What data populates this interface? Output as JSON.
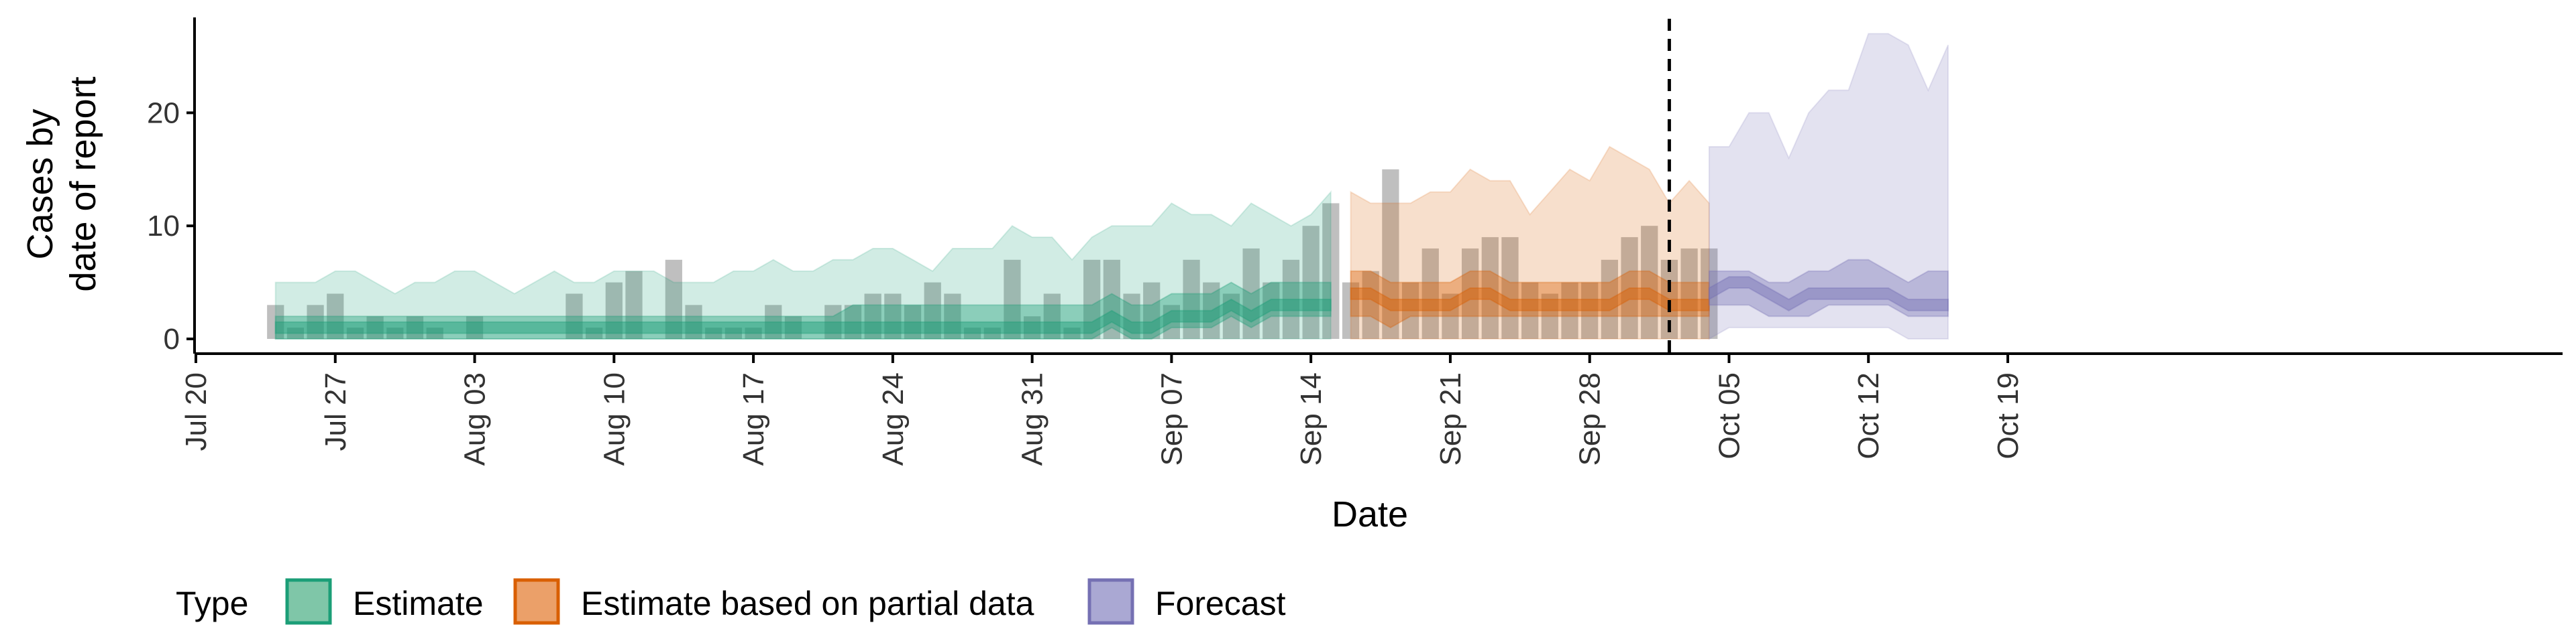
{
  "chart_data": {
    "type": "area",
    "xlabel": "Date",
    "ylabel": [
      "Cases by",
      "date of report"
    ],
    "ylim": [
      0,
      29
    ],
    "xlim": [
      "2020-07-20",
      "2020-10-19"
    ],
    "y_ticks": [
      0,
      10,
      20
    ],
    "x_ticks": [
      {
        "date": "2020-07-20",
        "label": "Jul 20"
      },
      {
        "date": "2020-07-27",
        "label": "Jul 27"
      },
      {
        "date": "2020-08-03",
        "label": "Aug 03"
      },
      {
        "date": "2020-08-10",
        "label": "Aug 10"
      },
      {
        "date": "2020-08-17",
        "label": "Aug 17"
      },
      {
        "date": "2020-08-24",
        "label": "Aug 24"
      },
      {
        "date": "2020-08-31",
        "label": "Aug 31"
      },
      {
        "date": "2020-09-07",
        "label": "Sep 07"
      },
      {
        "date": "2020-09-14",
        "label": "Sep 14"
      },
      {
        "date": "2020-09-21",
        "label": "Sep 21"
      },
      {
        "date": "2020-09-28",
        "label": "Sep 28"
      },
      {
        "date": "2020-10-05",
        "label": "Oct 05"
      },
      {
        "date": "2020-10-12",
        "label": "Oct 12"
      },
      {
        "date": "2020-10-19",
        "label": "Oct 19"
      }
    ],
    "forecast_date": "2020-10-02",
    "grid": false,
    "legend": {
      "title": "Type",
      "position": "bottom",
      "items": [
        {
          "name": "Estimate",
          "fill": "#7fc6a8",
          "stroke": "#1b9e77"
        },
        {
          "name": "Estimate based on partial data",
          "fill": "#eba069",
          "stroke": "#d95f02"
        },
        {
          "name": "Forecast",
          "fill": "#aaa8d3",
          "stroke": "#7570b3"
        }
      ]
    },
    "reported_cases": {
      "start": "2020-07-24",
      "values": [
        3,
        1,
        3,
        4,
        1,
        2,
        1,
        2,
        1,
        0,
        2,
        0,
        0,
        0,
        0,
        4,
        1,
        5,
        6,
        0,
        7,
        3,
        1,
        1,
        1,
        3,
        2,
        0,
        3,
        3,
        4,
        4,
        3,
        5,
        4,
        1,
        1,
        7,
        2,
        4,
        1,
        7,
        7,
        4,
        5,
        3,
        7,
        5,
        4,
        8,
        5,
        7,
        10,
        12,
        5,
        6,
        15,
        5,
        8,
        4,
        8,
        9,
        9,
        5,
        4,
        5,
        5,
        7,
        9,
        10,
        7,
        8,
        8
      ]
    },
    "series": [
      {
        "name": "Estimate",
        "color": "#1b9e77",
        "start": "2020-07-24",
        "median": [
          1,
          1,
          1,
          1,
          1,
          1,
          1,
          1,
          1,
          1,
          1,
          1,
          1,
          1,
          1,
          1,
          1,
          1,
          1,
          1,
          1,
          1,
          1,
          1,
          1,
          1,
          1,
          1,
          1,
          1,
          1,
          1,
          1,
          1,
          1,
          1,
          1,
          1,
          1,
          1,
          1,
          1,
          2,
          1,
          1,
          2,
          2,
          2,
          3,
          2,
          3,
          3,
          3,
          3
        ],
        "q25": [
          0,
          0,
          0,
          0,
          0,
          0,
          0,
          0,
          0,
          0,
          0,
          0,
          0,
          0,
          0,
          0,
          0,
          0,
          0,
          0,
          0,
          0,
          0,
          0,
          0,
          0,
          0,
          0,
          0,
          0,
          0,
          0,
          0,
          0,
          0,
          0,
          0,
          0,
          0,
          0,
          0,
          0,
          1,
          0,
          0,
          1,
          1,
          1,
          2,
          1,
          2,
          2,
          2,
          2
        ],
        "q75": [
          2,
          2,
          2,
          2,
          2,
          2,
          2,
          2,
          2,
          2,
          2,
          2,
          2,
          2,
          2,
          2,
          2,
          2,
          2,
          2,
          2,
          2,
          2,
          2,
          2,
          2,
          2,
          2,
          2,
          3,
          3,
          3,
          3,
          3,
          3,
          3,
          3,
          3,
          3,
          3,
          3,
          3,
          4,
          3,
          3,
          4,
          4,
          4,
          5,
          4,
          5,
          5,
          5,
          5
        ],
        "lower90": [
          0,
          0,
          0,
          0,
          0,
          0,
          0,
          0,
          0,
          0,
          0,
          0,
          0,
          0,
          0,
          0,
          0,
          0,
          0,
          0,
          0,
          0,
          0,
          0,
          0,
          0,
          0,
          0,
          0,
          0,
          0,
          0,
          0,
          0,
          0,
          0,
          0,
          0,
          0,
          0,
          0,
          0,
          0,
          0,
          0,
          0,
          0,
          0,
          0,
          0,
          0,
          0,
          0,
          0
        ],
        "upper90": [
          5,
          5,
          5,
          6,
          6,
          5,
          4,
          5,
          5,
          6,
          6,
          5,
          4,
          5,
          6,
          5,
          5,
          6,
          6,
          6,
          5,
          5,
          5,
          6,
          6,
          7,
          6,
          6,
          7,
          7,
          8,
          8,
          7,
          6,
          8,
          8,
          8,
          10,
          9,
          9,
          7,
          9,
          10,
          10,
          10,
          12,
          11,
          11,
          10,
          12,
          11,
          10,
          11,
          13
        ]
      },
      {
        "name": "Estimate based on partial data",
        "color": "#d95f02",
        "start": "2020-09-16",
        "median": [
          4,
          4,
          3,
          3,
          3,
          3,
          4,
          4,
          3,
          3,
          3,
          3,
          3,
          3,
          4,
          4,
          3,
          3,
          3
        ],
        "q25": [
          2,
          2,
          1,
          2,
          2,
          2,
          2,
          2,
          2,
          2,
          2,
          2,
          2,
          2,
          2,
          2,
          2,
          2,
          2
        ],
        "q75": [
          6,
          6,
          5,
          5,
          5,
          5,
          6,
          6,
          5,
          5,
          5,
          5,
          5,
          5,
          6,
          6,
          5,
          5,
          5
        ],
        "lower90": [
          0,
          0,
          0,
          0,
          0,
          0,
          0,
          0,
          0,
          0,
          0,
          0,
          0,
          0,
          0,
          0,
          0,
          0,
          0
        ],
        "upper90": [
          13,
          12,
          12,
          12,
          13,
          13,
          15,
          14,
          14,
          11,
          13,
          15,
          14,
          17,
          16,
          15,
          12,
          14,
          12
        ]
      },
      {
        "name": "Forecast",
        "color": "#7570b3",
        "start": "2020-10-04",
        "median": [
          4,
          5,
          5,
          4,
          3,
          4,
          4,
          4,
          4,
          4,
          3,
          3,
          3
        ],
        "q25": [
          3,
          3,
          3,
          2,
          2,
          2,
          3,
          3,
          3,
          3,
          2,
          2,
          2
        ],
        "q75": [
          6,
          6,
          6,
          5,
          5,
          6,
          6,
          7,
          7,
          6,
          5,
          6,
          6
        ],
        "lower90": [
          0,
          1,
          1,
          1,
          1,
          1,
          1,
          1,
          1,
          1,
          0,
          0,
          0
        ],
        "upper90": [
          17,
          17,
          20,
          20,
          16,
          20,
          22,
          22,
          27,
          27,
          26,
          22,
          26
        ]
      }
    ]
  }
}
